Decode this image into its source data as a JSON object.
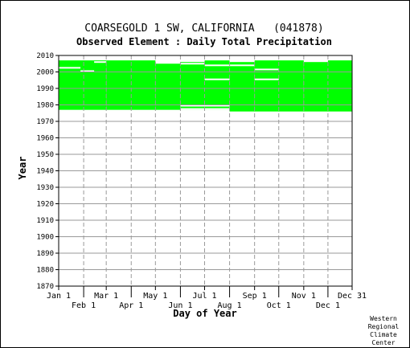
{
  "chart_data": {
    "type": "heatmap",
    "title": "COARSEGOLD 1 SW, CALIFORNIA   (041878)",
    "subtitle": "Observed Element : Daily Total Precipitation",
    "xlabel": "Day of Year",
    "ylabel": "Year",
    "ylim": [
      1870,
      2010
    ],
    "y_ticks": [
      1870,
      1880,
      1890,
      1900,
      1910,
      1920,
      1930,
      1940,
      1950,
      1960,
      1970,
      1980,
      1990,
      2000,
      2010
    ],
    "x_ticks": [
      {
        "label": "Jan 1",
        "day": 1,
        "row": "upper"
      },
      {
        "label": "Feb 1",
        "day": 32,
        "row": "lower"
      },
      {
        "label": "Mar 1",
        "day": 60,
        "row": "upper"
      },
      {
        "label": "Apr 1",
        "day": 91,
        "row": "lower"
      },
      {
        "label": "May 1",
        "day": 121,
        "row": "upper"
      },
      {
        "label": "Jun 1",
        "day": 152,
        "row": "lower"
      },
      {
        "label": "Jul 1",
        "day": 182,
        "row": "upper"
      },
      {
        "label": "Aug 1",
        "day": 213,
        "row": "lower"
      },
      {
        "label": "Sep 1",
        "day": 244,
        "row": "upper"
      },
      {
        "label": "Oct 1",
        "day": 274,
        "row": "lower"
      },
      {
        "label": "Nov 1",
        "day": 305,
        "row": "upper"
      },
      {
        "label": "Dec 1",
        "day": 335,
        "row": "lower"
      },
      {
        "label": "Dec 31",
        "day": 365,
        "row": "upper"
      }
    ],
    "grid": true,
    "data_color": "#00ff00",
    "coverage": [
      {
        "start_day": 1,
        "end_day": 60,
        "start_year": 1977,
        "end_year": 2007
      },
      {
        "start_day": 60,
        "end_day": 121,
        "start_year": 1977,
        "end_year": 2007
      },
      {
        "start_day": 121,
        "end_day": 152,
        "start_year": 1977,
        "end_year": 2005
      },
      {
        "start_day": 152,
        "end_day": 182,
        "start_year": 1977,
        "end_year": 2006
      },
      {
        "start_day": 182,
        "end_day": 213,
        "start_year": 1977,
        "end_year": 2007
      },
      {
        "start_day": 213,
        "end_day": 244,
        "start_year": 1976,
        "end_year": 2006
      },
      {
        "start_day": 244,
        "end_day": 305,
        "start_year": 1976,
        "end_year": 2007
      },
      {
        "start_day": 305,
        "end_day": 365,
        "start_year": 1976,
        "end_year": 2006
      },
      {
        "start_day": 335,
        "end_day": 365,
        "start_year": 2005,
        "end_year": 2007
      }
    ],
    "gaps": [
      {
        "start_day": 1,
        "end_day": 28,
        "year": 2002.5
      },
      {
        "start_day": 28,
        "end_day": 45,
        "year": 2000.5
      },
      {
        "start_day": 45,
        "end_day": 60,
        "year": 2006
      },
      {
        "start_day": 152,
        "end_day": 182,
        "year": 2005
      },
      {
        "start_day": 182,
        "end_day": 213,
        "year": 2004
      },
      {
        "start_day": 182,
        "end_day": 213,
        "year": 1995.5
      },
      {
        "start_day": 213,
        "end_day": 244,
        "year": 2004
      },
      {
        "start_day": 244,
        "end_day": 274,
        "year": 2001.5
      },
      {
        "start_day": 244,
        "end_day": 274,
        "year": 1995.5
      },
      {
        "start_day": 152,
        "end_day": 213,
        "year": 1979.5
      },
      {
        "start_day": 152,
        "end_day": 213,
        "year": 1977.5
      }
    ]
  },
  "credit": {
    "line1": "Western",
    "line2": "Regional",
    "line3": "Climate",
    "line4": "Center"
  }
}
